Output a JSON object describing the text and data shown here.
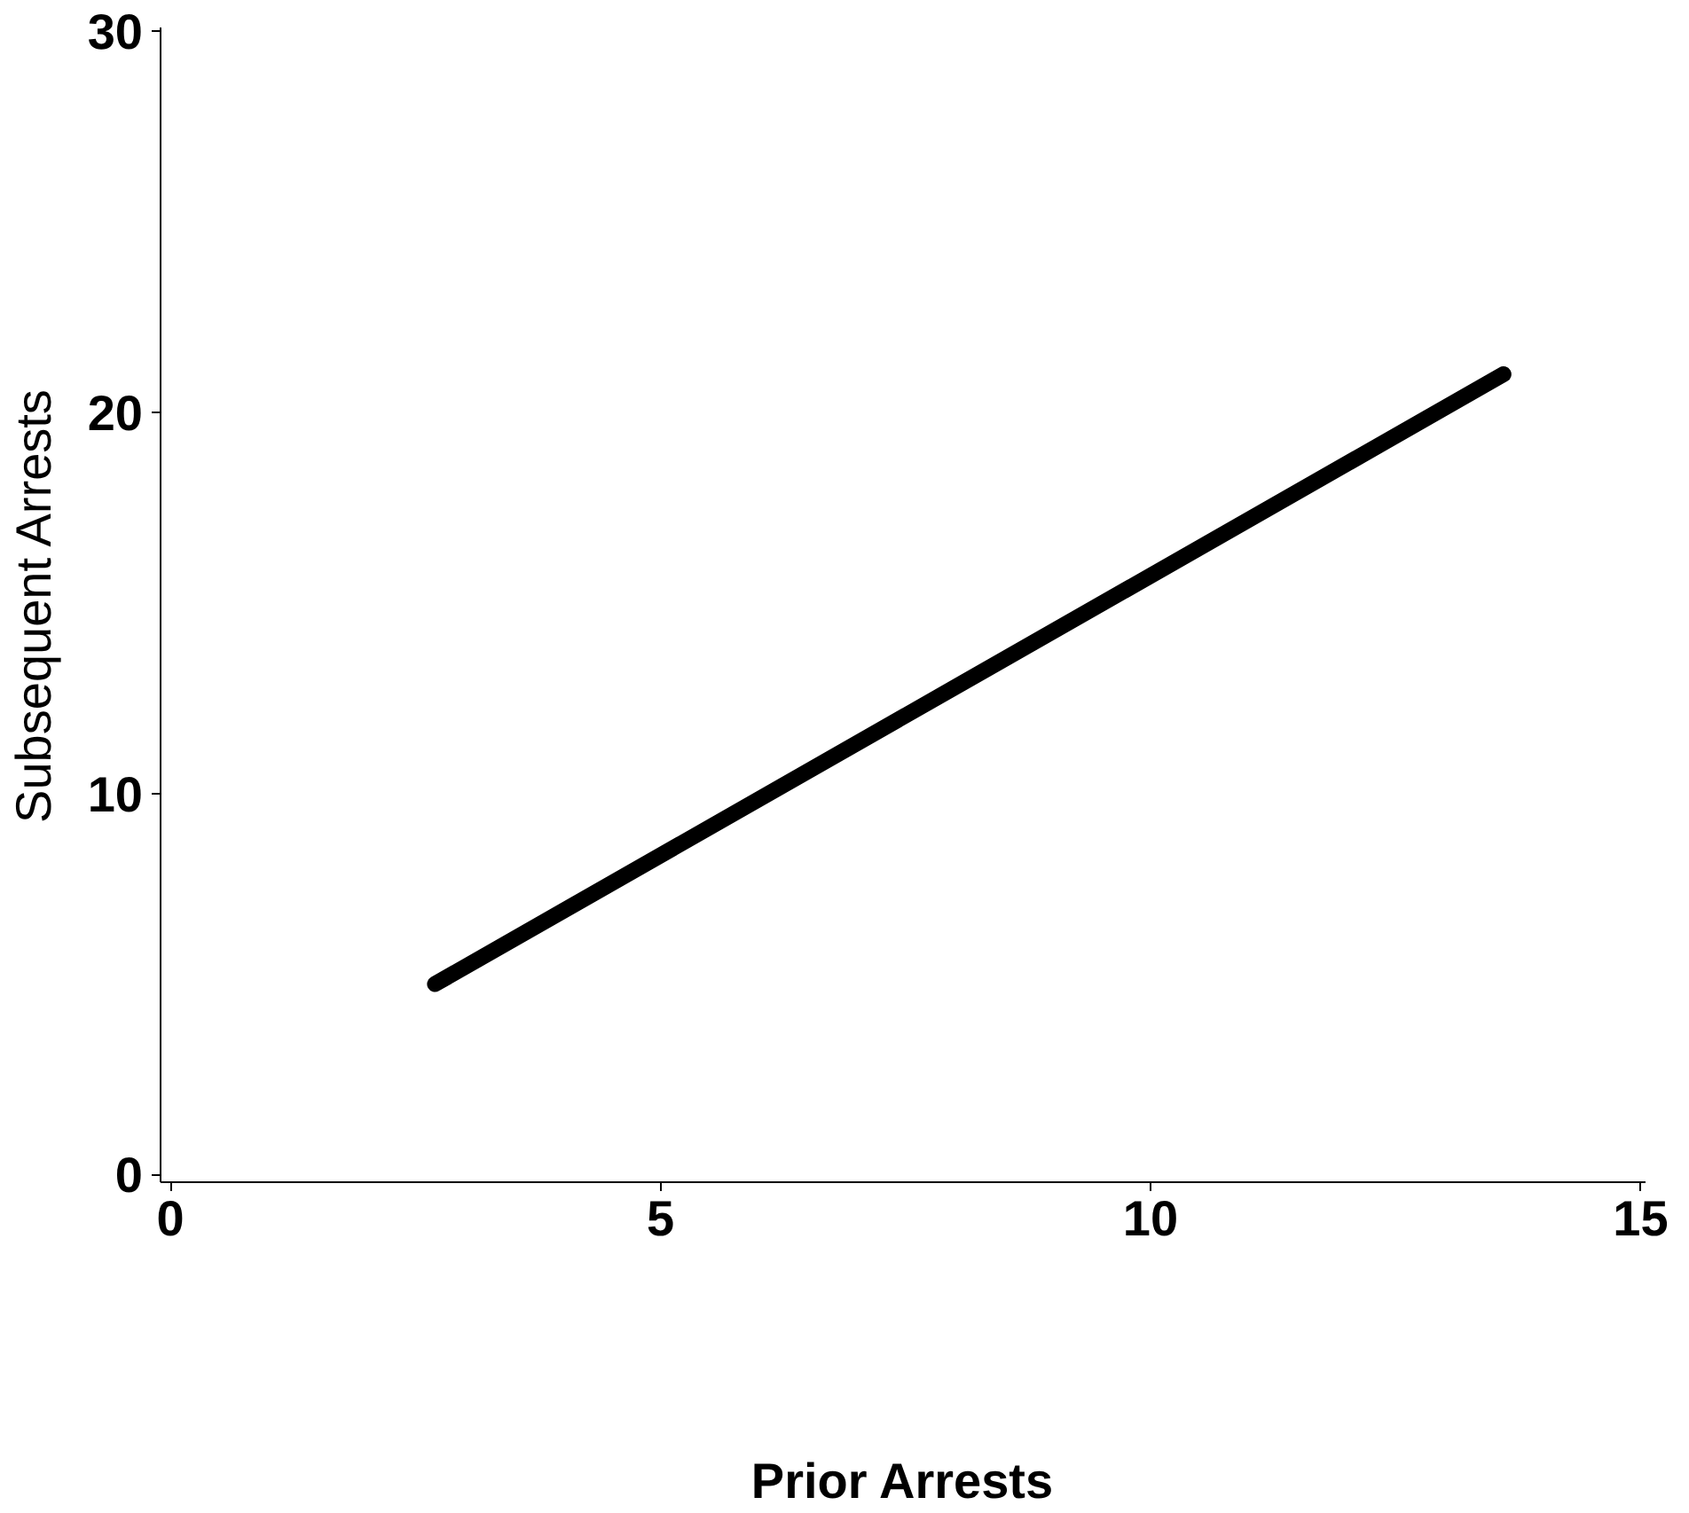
{
  "chart_data": {
    "type": "line",
    "xlabel": "Prior Arrests",
    "ylabel": "Subsequent Arrests",
    "x": [
      2.7,
      13.6
    ],
    "series": [
      {
        "color": "#000000",
        "values": [
          5,
          21
        ]
      }
    ],
    "xlim": [
      -0.1,
      15.05
    ],
    "ylim": [
      -0.2,
      30.1
    ],
    "xticks": [
      0,
      5,
      10,
      15
    ],
    "yticks": [
      0,
      10,
      20,
      30
    ],
    "grid": false,
    "marker": "none",
    "line_style": "solid"
  }
}
